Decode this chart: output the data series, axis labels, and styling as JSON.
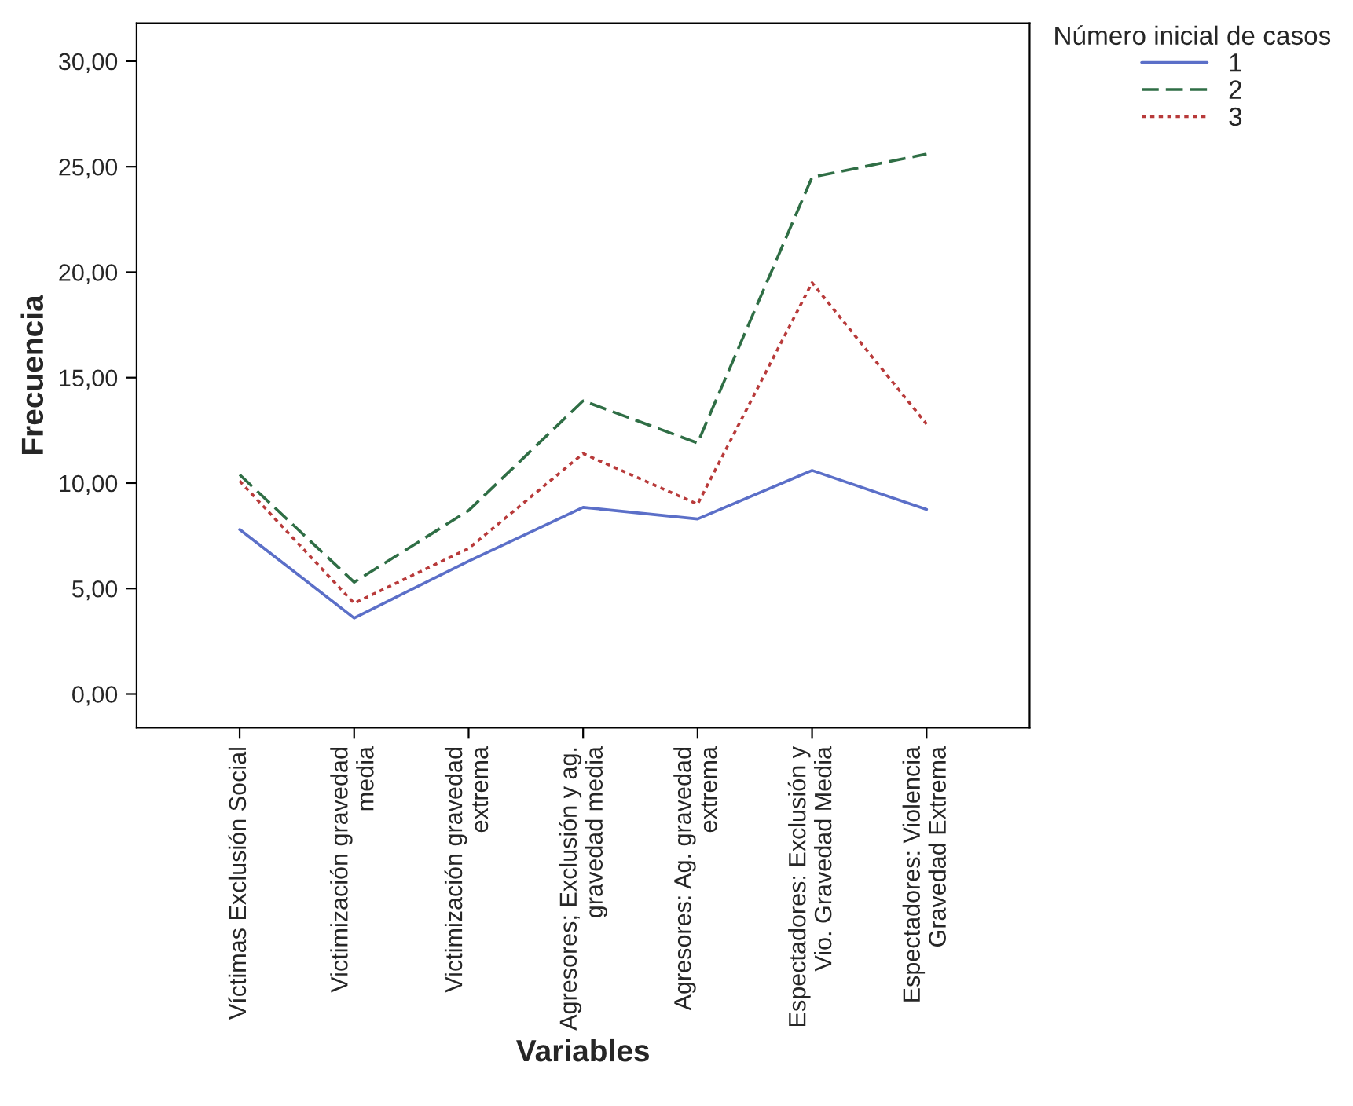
{
  "chart_data": {
    "type": "line",
    "xlabel": "Variables",
    "ylabel": "Frecuencia",
    "legend_title": "Número inicial de casos",
    "categories": [
      "Víctimas Exclusión Social",
      "Victimización gravedad\nmedia",
      "Victimización gravedad\nextrema",
      "Agresores; Exclusión y ag.\ngravedad media",
      "Agresores: Ag. gravedad\nextrema",
      "Espectadores: Exclusión y\nVio. Gravedad Media",
      "Espectadores: Violencia\nGravedad Extrema"
    ],
    "series": [
      {
        "name": "1",
        "color": "#5b6fc8",
        "line_style": "solid",
        "values": [
          7.8,
          3.6,
          6.3,
          8.85,
          8.3,
          10.6,
          8.75
        ]
      },
      {
        "name": "2",
        "color": "#2f6e45",
        "line_style": "dashed",
        "values": [
          10.4,
          5.3,
          8.7,
          13.9,
          11.9,
          24.5,
          25.6
        ]
      },
      {
        "name": "3",
        "color": "#b83a3a",
        "line_style": "dotted",
        "values": [
          10.1,
          4.3,
          6.9,
          11.4,
          9.0,
          19.5,
          12.8
        ]
      }
    ],
    "ylim": [
      -1.6,
      31.8
    ],
    "yticks": [
      {
        "value": 0,
        "label": "0,00"
      },
      {
        "value": 5,
        "label": "5,00"
      },
      {
        "value": 10,
        "label": "10,00"
      },
      {
        "value": 15,
        "label": "15,00"
      },
      {
        "value": 20,
        "label": "20,00"
      },
      {
        "value": 25,
        "label": "25,00"
      },
      {
        "value": 30,
        "label": "30,00"
      }
    ],
    "grid": false,
    "legend": "top right"
  }
}
